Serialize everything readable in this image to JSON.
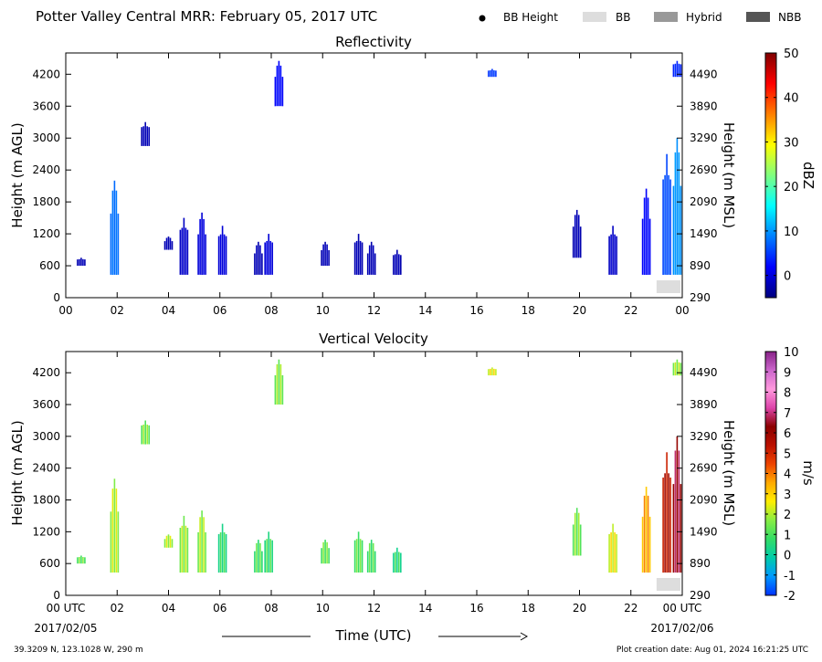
{
  "header": {
    "title": "Potter Valley Central MRR:  February 05, 2017 UTC",
    "legend": [
      {
        "label": "BB Height",
        "kind": "dot",
        "color": "#000000"
      },
      {
        "label": "BB",
        "kind": "swatch",
        "color": "#dddddd"
      },
      {
        "label": "Hybrid",
        "kind": "swatch",
        "color": "#999999"
      },
      {
        "label": "NBB",
        "kind": "swatch",
        "color": "#555555"
      }
    ]
  },
  "footer": {
    "location": "39.3209 N, 123.1028 W, 290 m",
    "creation": "Plot creation date: Aug 01, 2024 16:21:25 UTC",
    "xlabel": "Time (UTC)",
    "start_date": "2017/02/05",
    "end_date": "2017/02/06"
  },
  "chart_data": [
    {
      "type": "heatmap",
      "title": "Reflectivity",
      "ylabel": "Height (m AGL)",
      "ylabel_right": "Height (m MSL)",
      "x_ticks": [
        "00",
        "02",
        "04",
        "06",
        "08",
        "10",
        "12",
        "14",
        "16",
        "18",
        "20",
        "22",
        "00"
      ],
      "y_ticks": [
        0,
        600,
        1200,
        1800,
        2400,
        3000,
        3600,
        4200
      ],
      "y_ticks_right": [
        290,
        890,
        1490,
        2090,
        2690,
        3290,
        3890,
        4490
      ],
      "xlim": [
        0,
        24
      ],
      "ylim": [
        0,
        4600
      ],
      "colorbar": {
        "label": "dBZ",
        "ticks": [
          0,
          10,
          20,
          30,
          40,
          50
        ],
        "range": [
          -5,
          50
        ],
        "colors": [
          "#00007f",
          "#0000ff",
          "#007fff",
          "#00ffff",
          "#7fff7f",
          "#ffff00",
          "#ff7f00",
          "#ff0000",
          "#7f0000"
        ]
      },
      "bright_band": [
        {
          "start": 23.0,
          "end": 24.0,
          "type": "BB"
        }
      ],
      "echoes": [
        {
          "t": 0.6,
          "bottom": 600,
          "top": 750,
          "value": -2
        },
        {
          "t": 1.9,
          "bottom": 430,
          "top": 2200,
          "value": 8
        },
        {
          "t": 3.1,
          "bottom": 2850,
          "top": 3300,
          "value": -2
        },
        {
          "t": 4.0,
          "bottom": 900,
          "top": 1150,
          "value": -2
        },
        {
          "t": 4.6,
          "bottom": 430,
          "top": 1500,
          "value": -1
        },
        {
          "t": 5.3,
          "bottom": 430,
          "top": 1600,
          "value": 0
        },
        {
          "t": 6.1,
          "bottom": 430,
          "top": 1350,
          "value": 0
        },
        {
          "t": 7.5,
          "bottom": 430,
          "top": 1050,
          "value": -2
        },
        {
          "t": 7.9,
          "bottom": 430,
          "top": 1200,
          "value": 0
        },
        {
          "t": 10.1,
          "bottom": 600,
          "top": 1050,
          "value": -2
        },
        {
          "t": 11.4,
          "bottom": 430,
          "top": 1200,
          "value": -2
        },
        {
          "t": 11.9,
          "bottom": 430,
          "top": 1050,
          "value": -2
        },
        {
          "t": 12.9,
          "bottom": 430,
          "top": 900,
          "value": -2
        },
        {
          "t": 8.3,
          "bottom": 3600,
          "top": 4450,
          "value": 2
        },
        {
          "t": 16.6,
          "bottom": 4150,
          "top": 4300,
          "value": 5
        },
        {
          "t": 19.9,
          "bottom": 750,
          "top": 1650,
          "value": -2
        },
        {
          "t": 21.3,
          "bottom": 430,
          "top": 1350,
          "value": -1
        },
        {
          "t": 22.6,
          "bottom": 430,
          "top": 2050,
          "value": 2
        },
        {
          "t": 23.4,
          "bottom": 430,
          "top": 2700,
          "value": 6
        },
        {
          "t": 23.8,
          "bottom": 430,
          "top": 3000,
          "value": 10
        },
        {
          "t": 23.8,
          "bottom": 4150,
          "top": 4450,
          "value": 4
        }
      ]
    },
    {
      "type": "heatmap",
      "title": "Vertical Velocity",
      "ylabel": "Height (m AGL)",
      "ylabel_right": "Height (m MSL)",
      "x_ticks": [
        "00 UTC",
        "02",
        "04",
        "06",
        "08",
        "10",
        "12",
        "14",
        "16",
        "18",
        "20",
        "22",
        "00 UTC"
      ],
      "y_ticks": [
        0,
        600,
        1200,
        1800,
        2400,
        3000,
        3600,
        4200
      ],
      "y_ticks_right": [
        290,
        890,
        1490,
        2090,
        2690,
        3290,
        3890,
        4490
      ],
      "xlim": [
        0,
        24
      ],
      "ylim": [
        0,
        4600
      ],
      "colorbar": {
        "label": "m/s",
        "ticks": [
          -2,
          -1,
          0,
          1,
          2,
          3,
          4,
          5,
          6,
          7,
          8,
          9,
          10
        ],
        "range": [
          -2,
          10
        ],
        "colors": [
          "#0033ff",
          "#0099ff",
          "#00ccaa",
          "#33dd66",
          "#88ee44",
          "#ffee00",
          "#ffaa00",
          "#ee4400",
          "#bb1100",
          "#8b0000",
          "#dd44aa",
          "#ff99dd",
          "#cc66cc",
          "#882288"
        ]
      },
      "bright_band": [
        {
          "start": 23.0,
          "end": 24.0,
          "type": "BB"
        }
      ],
      "echoes": [
        {
          "t": 0.6,
          "bottom": 600,
          "top": 750,
          "value": 1.3
        },
        {
          "t": 1.9,
          "bottom": 430,
          "top": 2200,
          "value": 2
        },
        {
          "t": 3.1,
          "bottom": 2850,
          "top": 3300,
          "value": 1.5
        },
        {
          "t": 4.0,
          "bottom": 900,
          "top": 1150,
          "value": 2
        },
        {
          "t": 4.6,
          "bottom": 430,
          "top": 1500,
          "value": 1.8
        },
        {
          "t": 5.3,
          "bottom": 430,
          "top": 1600,
          "value": 1.8
        },
        {
          "t": 6.1,
          "bottom": 430,
          "top": 1350,
          "value": 0.7
        },
        {
          "t": 7.5,
          "bottom": 430,
          "top": 1050,
          "value": 1
        },
        {
          "t": 7.9,
          "bottom": 430,
          "top": 1200,
          "value": 0.8
        },
        {
          "t": 10.1,
          "bottom": 600,
          "top": 1050,
          "value": 1.3
        },
        {
          "t": 11.4,
          "bottom": 430,
          "top": 1200,
          "value": 1.2
        },
        {
          "t": 11.9,
          "bottom": 430,
          "top": 1050,
          "value": 1
        },
        {
          "t": 12.9,
          "bottom": 430,
          "top": 900,
          "value": 0.6
        },
        {
          "t": 8.3,
          "bottom": 3600,
          "top": 4450,
          "value": 1.6
        },
        {
          "t": 16.6,
          "bottom": 4150,
          "top": 4300,
          "value": 2.5
        },
        {
          "t": 19.9,
          "bottom": 750,
          "top": 1650,
          "value": 1.5
        },
        {
          "t": 21.3,
          "bottom": 430,
          "top": 1350,
          "value": 2.5
        },
        {
          "t": 22.6,
          "bottom": 430,
          "top": 2050,
          "value": 3.5
        },
        {
          "t": 23.4,
          "bottom": 430,
          "top": 2700,
          "value": 5.5
        },
        {
          "t": 23.8,
          "bottom": 430,
          "top": 3000,
          "value": 6.5
        },
        {
          "t": 23.8,
          "bottom": 4150,
          "top": 4450,
          "value": 1.8
        }
      ]
    }
  ]
}
